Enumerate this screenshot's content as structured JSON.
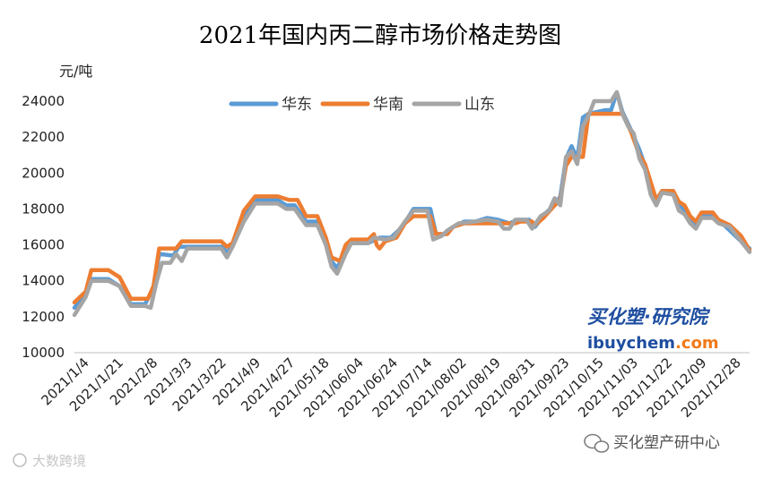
{
  "chart_data": {
    "type": "line",
    "title": "2021年国内丙二醇市场价格走势图",
    "ylabel": "元/吨",
    "xlabel": "",
    "ylim": [
      10000,
      24000
    ],
    "yticks": [
      10000,
      12000,
      14000,
      16000,
      18000,
      20000,
      22000,
      24000
    ],
    "grid": false,
    "legend_position": "top-center",
    "categories": [
      "2021/1/4",
      "2021/1/21",
      "2021/2/8",
      "2021/3/3",
      "2021/3/22",
      "2021/4/9",
      "2021/4/27",
      "2021/05/18",
      "2021/06/04",
      "2021/06/24",
      "2021/07/14",
      "2021/08/02",
      "2021/08/19",
      "2021/08/31",
      "2021/09/23",
      "2021/10/15",
      "2021/11/03",
      "2021/11/22",
      "2021/12/09",
      "2021/12/28"
    ],
    "x": [
      0,
      1,
      2,
      3,
      4,
      5,
      6,
      7,
      8,
      9,
      10,
      11,
      12,
      13,
      14,
      15,
      16,
      17,
      18,
      19,
      20,
      21,
      22,
      23,
      24,
      25,
      26,
      27,
      28,
      29,
      30,
      31,
      32,
      33,
      34,
      35,
      36,
      37,
      38,
      39,
      40,
      41,
      42,
      43,
      44,
      45,
      46,
      47,
      48,
      49,
      50,
      51,
      52,
      53,
      54,
      55,
      56,
      57,
      58,
      59,
      60,
      61,
      62,
      63,
      64,
      65,
      66,
      67,
      68,
      69,
      70,
      71,
      72,
      73,
      74,
      75,
      76,
      77,
      78,
      79,
      80,
      81,
      82,
      83,
      84,
      85,
      86,
      87,
      88,
      89,
      90,
      91,
      92,
      93,
      94,
      95,
      96,
      97,
      98,
      99,
      100,
      101,
      102,
      103,
      104,
      105,
      106,
      107,
      108,
      109,
      110,
      111,
      112,
      113,
      114,
      115,
      116,
      117,
      118,
      119,
      120,
      121,
      122,
      123,
      124,
      125,
      126,
      127,
      128,
      129,
      130,
      131,
      132,
      133,
      134,
      135,
      136,
      137,
      138,
      139,
      140,
      141,
      142,
      143,
      144,
      145,
      146,
      147,
      148,
      149,
      150,
      151,
      152,
      153,
      154,
      155,
      156,
      157,
      158,
      159,
      160,
      161,
      162,
      163,
      164,
      165,
      166,
      167,
      168,
      169,
      170,
      171,
      172,
      173,
      174,
      175,
      176,
      177,
      178,
      179,
      180,
      181,
      182,
      183,
      184,
      185,
      186,
      187,
      188,
      189,
      190,
      191,
      192,
      193,
      194,
      195,
      196,
      197,
      198,
      199,
      200,
      201,
      202,
      203,
      204,
      205,
      206,
      207,
      208,
      209,
      210,
      211,
      212,
      213,
      214,
      215,
      216,
      217,
      218,
      219,
      220,
      221,
      222,
      223,
      224,
      225,
      226,
      227,
      228,
      229,
      230,
      231,
      232,
      233,
      234,
      235,
      236,
      237,
      238,
      239
    ],
    "series": [
      {
        "name": "华东",
        "color": "#5B9BD5",
        "points": [
          [
            0,
            12500
          ],
          [
            4,
            13300
          ],
          [
            6,
            14100
          ],
          [
            12,
            14100
          ],
          [
            16,
            13700
          ],
          [
            20,
            12700
          ],
          [
            25,
            12700
          ],
          [
            28,
            13600
          ],
          [
            30,
            15500
          ],
          [
            35,
            15400
          ],
          [
            37,
            15900
          ],
          [
            44,
            15900
          ],
          [
            48,
            15900
          ],
          [
            52,
            15900
          ],
          [
            54,
            15600
          ],
          [
            56,
            15900
          ],
          [
            60,
            17600
          ],
          [
            64,
            18500
          ],
          [
            72,
            18500
          ],
          [
            75,
            18200
          ],
          [
            78,
            18200
          ],
          [
            82,
            17300
          ],
          [
            86,
            17300
          ],
          [
            89,
            16200
          ],
          [
            91,
            15100
          ],
          [
            93,
            14700
          ],
          [
            96,
            15700
          ],
          [
            98,
            16100
          ],
          [
            104,
            16100
          ],
          [
            108,
            16400
          ],
          [
            112,
            16400
          ],
          [
            116,
            17000
          ],
          [
            120,
            18000
          ],
          [
            126,
            18000
          ],
          [
            128,
            16600
          ],
          [
            131,
            16600
          ],
          [
            134,
            17000
          ],
          [
            138,
            17300
          ],
          [
            142,
            17300
          ],
          [
            146,
            17500
          ],
          [
            150,
            17400
          ],
          [
            154,
            17200
          ],
          [
            157,
            17400
          ],
          [
            161,
            17400
          ],
          [
            163,
            17000
          ],
          [
            167,
            17800
          ],
          [
            170,
            18200
          ],
          [
            172,
            18700
          ],
          [
            174,
            20800
          ],
          [
            176,
            21500
          ],
          [
            178,
            20800
          ],
          [
            180,
            23100
          ],
          [
            182,
            23300
          ],
          [
            188,
            23500
          ],
          [
            190,
            23500
          ],
          [
            192,
            24500
          ],
          [
            194,
            23400
          ],
          [
            197,
            22400
          ],
          [
            200,
            21300
          ],
          [
            202,
            20400
          ],
          [
            204,
            19000
          ],
          [
            206,
            18500
          ],
          [
            208,
            19000
          ],
          [
            212,
            19000
          ],
          [
            214,
            18300
          ],
          [
            216,
            17900
          ],
          [
            218,
            17400
          ],
          [
            220,
            17100
          ],
          [
            222,
            17700
          ],
          [
            226,
            17700
          ],
          [
            228,
            17400
          ],
          [
            232,
            16800
          ],
          [
            236,
            16200
          ],
          [
            239,
            15800
          ]
        ]
      },
      {
        "name": "华南",
        "color": "#ED7D31",
        "points": [
          [
            0,
            12800
          ],
          [
            4,
            13400
          ],
          [
            6,
            14600
          ],
          [
            12,
            14600
          ],
          [
            16,
            14200
          ],
          [
            20,
            13000
          ],
          [
            26,
            13000
          ],
          [
            28,
            13700
          ],
          [
            30,
            15800
          ],
          [
            36,
            15800
          ],
          [
            38,
            16200
          ],
          [
            48,
            16200
          ],
          [
            52,
            16200
          ],
          [
            54,
            15900
          ],
          [
            56,
            16100
          ],
          [
            60,
            17900
          ],
          [
            64,
            18700
          ],
          [
            72,
            18700
          ],
          [
            76,
            18500
          ],
          [
            79,
            18500
          ],
          [
            82,
            17600
          ],
          [
            86,
            17600
          ],
          [
            89,
            16400
          ],
          [
            91,
            15300
          ],
          [
            94,
            15100
          ],
          [
            96,
            16000
          ],
          [
            98,
            16300
          ],
          [
            104,
            16300
          ],
          [
            106,
            16600
          ],
          [
            107,
            16000
          ],
          [
            108,
            15800
          ],
          [
            110,
            16200
          ],
          [
            114,
            16400
          ],
          [
            117,
            17200
          ],
          [
            120,
            17600
          ],
          [
            126,
            17600
          ],
          [
            128,
            16600
          ],
          [
            132,
            16600
          ],
          [
            134,
            17000
          ],
          [
            138,
            17200
          ],
          [
            145,
            17200
          ],
          [
            150,
            17200
          ],
          [
            156,
            17200
          ],
          [
            158,
            17300
          ],
          [
            162,
            17300
          ],
          [
            163,
            17100
          ],
          [
            166,
            17500
          ],
          [
            170,
            18200
          ],
          [
            172,
            18500
          ],
          [
            174,
            20400
          ],
          [
            176,
            20900
          ],
          [
            180,
            20900
          ],
          [
            182,
            23300
          ],
          [
            190,
            23300
          ],
          [
            192,
            23300
          ],
          [
            194,
            23300
          ],
          [
            197,
            22300
          ],
          [
            200,
            21000
          ],
          [
            202,
            20500
          ],
          [
            204,
            19500
          ],
          [
            206,
            18500
          ],
          [
            208,
            19000
          ],
          [
            212,
            19000
          ],
          [
            214,
            18400
          ],
          [
            216,
            18200
          ],
          [
            218,
            17600
          ],
          [
            220,
            17300
          ],
          [
            222,
            17800
          ],
          [
            226,
            17800
          ],
          [
            228,
            17400
          ],
          [
            232,
            17100
          ],
          [
            236,
            16500
          ],
          [
            239,
            15700
          ]
        ]
      },
      {
        "name": "山东",
        "color": "#A5A5A5",
        "points": [
          [
            0,
            12100
          ],
          [
            2,
            12600
          ],
          [
            4,
            13100
          ],
          [
            6,
            14000
          ],
          [
            12,
            14000
          ],
          [
            16,
            13700
          ],
          [
            20,
            12600
          ],
          [
            25,
            12600
          ],
          [
            27,
            12500
          ],
          [
            29,
            13900
          ],
          [
            31,
            15000
          ],
          [
            34,
            15000
          ],
          [
            36,
            15500
          ],
          [
            38,
            15100
          ],
          [
            40,
            15800
          ],
          [
            48,
            15800
          ],
          [
            52,
            15800
          ],
          [
            54,
            15300
          ],
          [
            56,
            15900
          ],
          [
            60,
            17300
          ],
          [
            64,
            18300
          ],
          [
            72,
            18300
          ],
          [
            75,
            18000
          ],
          [
            78,
            18000
          ],
          [
            82,
            17100
          ],
          [
            86,
            17100
          ],
          [
            89,
            16000
          ],
          [
            91,
            14800
          ],
          [
            93,
            14400
          ],
          [
            96,
            15500
          ],
          [
            98,
            16100
          ],
          [
            104,
            16100
          ],
          [
            106,
            16400
          ],
          [
            110,
            16300
          ],
          [
            113,
            16400
          ],
          [
            117,
            17300
          ],
          [
            120,
            17900
          ],
          [
            125,
            17900
          ],
          [
            127,
            16300
          ],
          [
            130,
            16500
          ],
          [
            132,
            16800
          ],
          [
            136,
            17200
          ],
          [
            142,
            17300
          ],
          [
            146,
            17400
          ],
          [
            150,
            17300
          ],
          [
            152,
            16900
          ],
          [
            154,
            16900
          ],
          [
            156,
            17400
          ],
          [
            160,
            17400
          ],
          [
            162,
            16900
          ],
          [
            165,
            17600
          ],
          [
            168,
            17900
          ],
          [
            170,
            18600
          ],
          [
            172,
            18200
          ],
          [
            174,
            20900
          ],
          [
            176,
            21200
          ],
          [
            178,
            20500
          ],
          [
            180,
            22600
          ],
          [
            182,
            23200
          ],
          [
            184,
            24000
          ],
          [
            186,
            24000
          ],
          [
            188,
            24000
          ],
          [
            190,
            24000
          ],
          [
            192,
            24500
          ],
          [
            194,
            23300
          ],
          [
            196,
            22600
          ],
          [
            198,
            22200
          ],
          [
            200,
            20800
          ],
          [
            202,
            20200
          ],
          [
            204,
            18800
          ],
          [
            206,
            18200
          ],
          [
            208,
            18900
          ],
          [
            212,
            18800
          ],
          [
            214,
            17900
          ],
          [
            216,
            17700
          ],
          [
            218,
            17200
          ],
          [
            220,
            16900
          ],
          [
            222,
            17500
          ],
          [
            226,
            17500
          ],
          [
            228,
            17200
          ],
          [
            232,
            17000
          ],
          [
            236,
            16200
          ],
          [
            239,
            15600
          ]
        ]
      }
    ],
    "legend": [
      "华东",
      "华南",
      "山东"
    ]
  },
  "watermarks": {
    "brand_cn": "买化塑·研究院",
    "brand_url_prefix": "ibuychem",
    "brand_url_suffix": ".com",
    "wechat": "买化塑产研中心",
    "bottom_left": "大数跨境"
  },
  "colors": {
    "brand_blue": "#1E4EA0",
    "brand_orange": "#F07A1A"
  }
}
